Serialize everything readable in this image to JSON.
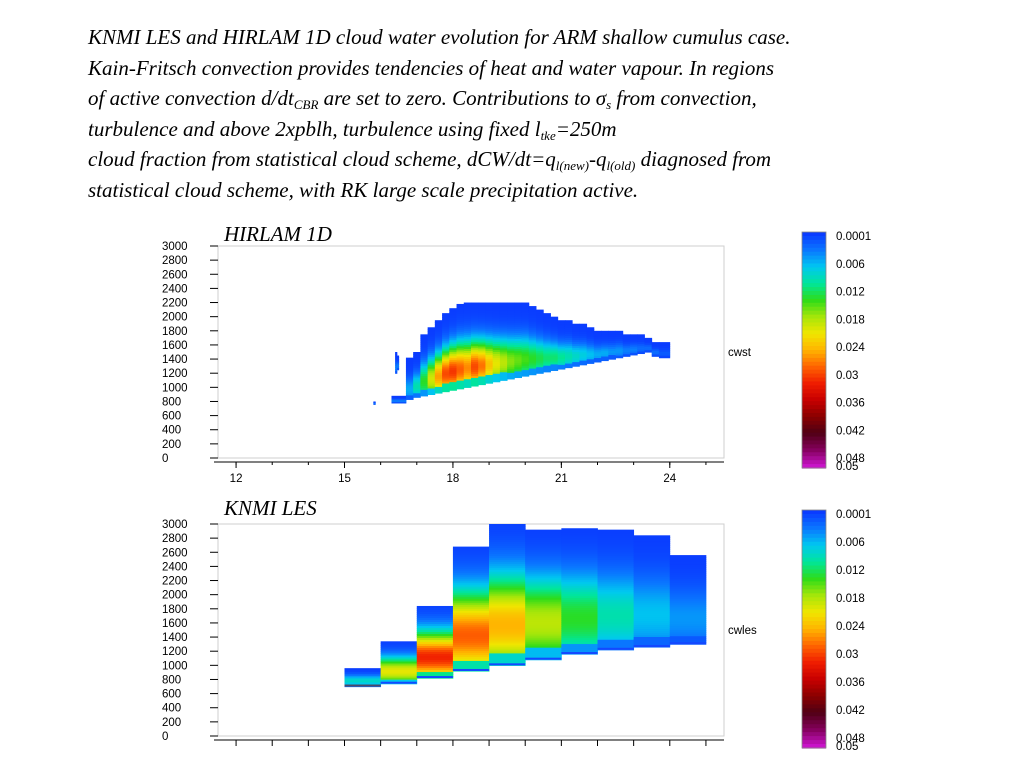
{
  "caption": {
    "p1": "KNMI LES and HIRLAM 1D cloud water evolution for ARM shallow cumulus case.",
    "p2": "Kain-Fritsch convection provides tendencies of heat and water vapour. In regions",
    "p3a": "of active convection d/dt",
    "p3b": "CBR",
    "p3c": " are set to zero. Contributions to ",
    "p3d": "σ",
    "p3e": "s",
    "p3f": " from convection,",
    "p4a": "turbulence and above 2xpblh, turbulence using fixed l",
    "p4b": "tke",
    "p4c": "=250m",
    "p5a": "cloud fraction from statistical cloud scheme, dCW/dt=q",
    "p5b": "l(new)",
    "p5c": "-q",
    "p5d": "l(old)",
    "p5e": " diagnosed from",
    "p6": "statistical cloud scheme, with RK large scale precipitation active."
  },
  "colorbar_ticks": [
    "0.0001",
    "0.006",
    "0.012",
    "0.018",
    "0.024",
    "0.03",
    "0.036",
    "0.042",
    "0.048",
    "0.05"
  ],
  "colorbar_stops": [
    "#0a3cff",
    "#0a78ff",
    "#00c8f0",
    "#00e69a",
    "#2edc19",
    "#a5e60a",
    "#f0e600",
    "#ffb400",
    "#ff6400",
    "#f01e00",
    "#c80000",
    "#8c0000",
    "#500014",
    "#82005a",
    "#c814c8"
  ],
  "chart_data": [
    {
      "type": "heatmap",
      "title": "HIRLAM 1D",
      "variable_label": "cwst",
      "xlim": [
        11.5,
        25.5
      ],
      "ylim": [
        0,
        3000
      ],
      "xticks": [
        12,
        15,
        18,
        21,
        24
      ],
      "yticks": [
        0,
        200,
        400,
        600,
        800,
        1000,
        1200,
        1400,
        1600,
        1800,
        2000,
        2200,
        2400,
        2600,
        2800,
        3000
      ],
      "colorbar": {
        "min": 0.0001,
        "max": 0.05
      },
      "columns": [
        {
          "x0": 15.8,
          "x1": 15.85,
          "base": 760,
          "top": 800,
          "core": 0.004
        },
        {
          "x0": 16.4,
          "x1": 16.45,
          "base": 1200,
          "top": 1500,
          "core": 0.004
        },
        {
          "x0": 16.45,
          "x1": 16.5,
          "base": 1250,
          "top": 1450,
          "core": 0.004
        },
        {
          "x0": 16.3,
          "x1": 16.7,
          "base": 780,
          "top": 880,
          "core": 0.004
        },
        {
          "x0": 16.7,
          "x1": 16.9,
          "base": 830,
          "top": 1420,
          "core": 0.006
        },
        {
          "x0": 16.9,
          "x1": 17.1,
          "base": 860,
          "top": 1500,
          "core": 0.01
        },
        {
          "x0": 17.1,
          "x1": 17.3,
          "base": 880,
          "top": 1750,
          "core": 0.014
        },
        {
          "x0": 17.3,
          "x1": 17.5,
          "base": 900,
          "top": 1850,
          "core": 0.02
        },
        {
          "x0": 17.5,
          "x1": 17.7,
          "base": 920,
          "top": 1950,
          "core": 0.026
        },
        {
          "x0": 17.7,
          "x1": 17.9,
          "base": 940,
          "top": 2050,
          "core": 0.03
        },
        {
          "x0": 17.9,
          "x1": 18.1,
          "base": 960,
          "top": 2120,
          "core": 0.031
        },
        {
          "x0": 18.1,
          "x1": 18.3,
          "base": 980,
          "top": 2180,
          "core": 0.029
        },
        {
          "x0": 18.3,
          "x1": 18.5,
          "base": 1000,
          "top": 2200,
          "core": 0.027
        },
        {
          "x0": 18.5,
          "x1": 18.7,
          "base": 1020,
          "top": 2200,
          "core": 0.03
        },
        {
          "x0": 18.7,
          "x1": 18.9,
          "base": 1040,
          "top": 2200,
          "core": 0.028
        },
        {
          "x0": 18.9,
          "x1": 19.1,
          "base": 1060,
          "top": 2200,
          "core": 0.024
        },
        {
          "x0": 19.1,
          "x1": 19.3,
          "base": 1080,
          "top": 2200,
          "core": 0.021
        },
        {
          "x0": 19.3,
          "x1": 19.5,
          "base": 1100,
          "top": 2200,
          "core": 0.019
        },
        {
          "x0": 19.5,
          "x1": 19.7,
          "base": 1120,
          "top": 2200,
          "core": 0.017
        },
        {
          "x0": 19.7,
          "x1": 19.9,
          "base": 1140,
          "top": 2200,
          "core": 0.016
        },
        {
          "x0": 19.9,
          "x1": 20.1,
          "base": 1160,
          "top": 2200,
          "core": 0.015
        },
        {
          "x0": 20.1,
          "x1": 20.3,
          "base": 1180,
          "top": 2150,
          "core": 0.014
        },
        {
          "x0": 20.3,
          "x1": 20.5,
          "base": 1200,
          "top": 2100,
          "core": 0.013
        },
        {
          "x0": 20.5,
          "x1": 20.7,
          "base": 1220,
          "top": 2050,
          "core": 0.012
        },
        {
          "x0": 20.7,
          "x1": 20.9,
          "base": 1240,
          "top": 2000,
          "core": 0.012
        },
        {
          "x0": 20.9,
          "x1": 21.1,
          "base": 1260,
          "top": 1950,
          "core": 0.011
        },
        {
          "x0": 21.1,
          "x1": 21.3,
          "base": 1280,
          "top": 1950,
          "core": 0.01
        },
        {
          "x0": 21.3,
          "x1": 21.5,
          "base": 1300,
          "top": 1900,
          "core": 0.009
        },
        {
          "x0": 21.5,
          "x1": 21.7,
          "base": 1320,
          "top": 1900,
          "core": 0.008
        },
        {
          "x0": 21.7,
          "x1": 21.9,
          "base": 1340,
          "top": 1850,
          "core": 0.007
        },
        {
          "x0": 21.9,
          "x1": 22.1,
          "base": 1360,
          "top": 1800,
          "core": 0.006
        },
        {
          "x0": 22.1,
          "x1": 22.3,
          "base": 1380,
          "top": 1800,
          "core": 0.006
        },
        {
          "x0": 22.3,
          "x1": 22.5,
          "base": 1400,
          "top": 1800,
          "core": 0.005
        },
        {
          "x0": 22.5,
          "x1": 22.7,
          "base": 1420,
          "top": 1800,
          "core": 0.005
        },
        {
          "x0": 22.7,
          "x1": 22.9,
          "base": 1440,
          "top": 1750,
          "core": 0.004
        },
        {
          "x0": 22.9,
          "x1": 23.1,
          "base": 1460,
          "top": 1750,
          "core": 0.004
        },
        {
          "x0": 23.1,
          "x1": 23.3,
          "base": 1480,
          "top": 1750,
          "core": 0.003
        },
        {
          "x0": 23.3,
          "x1": 23.5,
          "base": 1500,
          "top": 1700,
          "core": 0.003
        },
        {
          "x0": 23.5,
          "x1": 23.7,
          "base": 1440,
          "top": 1640,
          "core": 0.003
        },
        {
          "x0": 23.7,
          "x1": 24.0,
          "base": 1420,
          "top": 1640,
          "core": 0.002
        }
      ]
    },
    {
      "type": "heatmap",
      "title": "KNMI LES",
      "variable_label": "cwles",
      "xlim": [
        11.5,
        25.5
      ],
      "ylim": [
        0,
        3000
      ],
      "yticks": [
        0,
        200,
        400,
        600,
        800,
        1000,
        1200,
        1400,
        1600,
        1800,
        2000,
        2200,
        2400,
        2600,
        2800,
        3000
      ],
      "colorbar": {
        "min": 0.0001,
        "max": 0.05
      },
      "columns": [
        {
          "x0": 15.0,
          "x1": 16.0,
          "base": 700,
          "top": 960,
          "core": 0.009
        },
        {
          "x0": 16.0,
          "x1": 17.0,
          "base": 740,
          "top": 1340,
          "core": 0.021
        },
        {
          "x0": 17.0,
          "x1": 18.0,
          "base": 820,
          "top": 1840,
          "core": 0.032
        },
        {
          "x0": 18.0,
          "x1": 19.0,
          "base": 920,
          "top": 2680,
          "core": 0.029
        },
        {
          "x0": 19.0,
          "x1": 20.0,
          "base": 1000,
          "top": 3000,
          "core": 0.025
        },
        {
          "x0": 20.0,
          "x1": 21.0,
          "base": 1080,
          "top": 2920,
          "core": 0.019
        },
        {
          "x0": 21.0,
          "x1": 22.0,
          "base": 1160,
          "top": 2940,
          "core": 0.014
        },
        {
          "x0": 22.0,
          "x1": 23.0,
          "base": 1220,
          "top": 2920,
          "core": 0.01
        },
        {
          "x0": 23.0,
          "x1": 24.0,
          "base": 1260,
          "top": 2840,
          "core": 0.007
        },
        {
          "x0": 24.0,
          "x1": 25.0,
          "base": 1300,
          "top": 2560,
          "core": 0.005
        }
      ]
    }
  ]
}
